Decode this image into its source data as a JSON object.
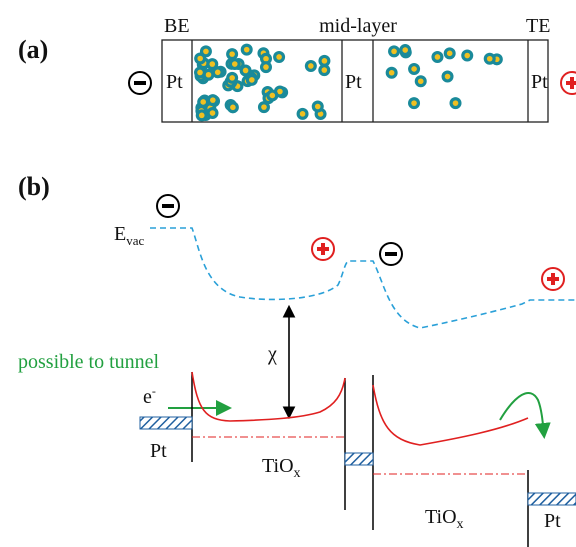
{
  "panel_a": {
    "label": "(a)",
    "be": "BE",
    "mid_layer": "mid-layer",
    "te": "TE",
    "pt_left": "Pt",
    "pt_mid": "Pt",
    "pt_right": "Pt"
  },
  "panel_b": {
    "label": "(b)",
    "evac": "E",
    "evac_sub": "vac",
    "chi": "χ",
    "tunnel": "possible to tunnel",
    "electron": "e",
    "electron_sup": "-",
    "pt_left": "Pt",
    "tiox_left": "TiO",
    "tiox_left_sub": "x",
    "tiox_right": "TiO",
    "tiox_right_sub": "x",
    "pt_right": "Pt"
  }
}
